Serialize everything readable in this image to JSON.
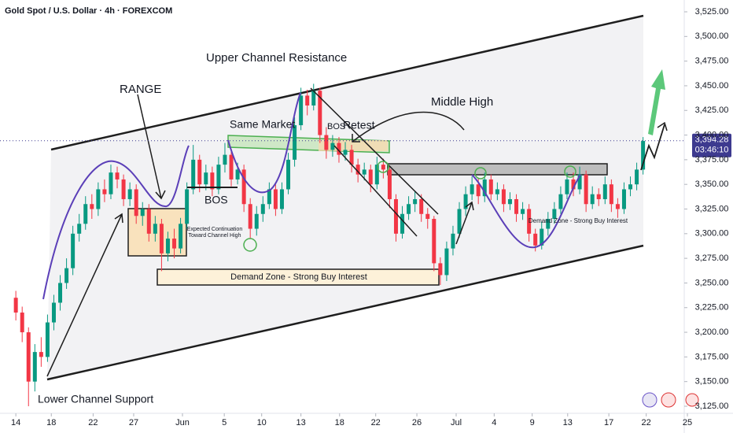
{
  "chart_data": {
    "type": "candlestick",
    "title": "Gold Spot / U.S. Dollar · 4h · FOREXCOM",
    "up_color": "#089981",
    "down_color": "#f23645",
    "xlim": [
      -2.5,
      105.5
    ],
    "ylim": [
      3125,
      3525
    ],
    "xticks": [
      {
        "value": 0,
        "label": "14"
      },
      {
        "value": 5.6,
        "label": "18"
      },
      {
        "value": 12.2,
        "label": "22"
      },
      {
        "value": 18.6,
        "label": "27"
      },
      {
        "value": 26.3,
        "label": "Jun"
      },
      {
        "value": 32.9,
        "label": "5"
      },
      {
        "value": 38.8,
        "label": "10"
      },
      {
        "value": 45,
        "label": "13"
      },
      {
        "value": 51.1,
        "label": "18"
      },
      {
        "value": 56.8,
        "label": "22"
      },
      {
        "value": 63.3,
        "label": "26"
      },
      {
        "value": 69.5,
        "label": "Jul"
      },
      {
        "value": 75.5,
        "label": "4"
      },
      {
        "value": 81.5,
        "label": "9"
      },
      {
        "value": 87.1,
        "label": "13"
      },
      {
        "value": 93.6,
        "label": "17"
      },
      {
        "value": 99.5,
        "label": "22"
      },
      {
        "value": 106,
        "label": "25"
      }
    ],
    "yticks": [
      {
        "value": 3125,
        "label": "3,125.00"
      },
      {
        "value": 3150,
        "label": "3,150.00"
      },
      {
        "value": 3175,
        "label": "3,175.00"
      },
      {
        "value": 3200,
        "label": "3,200.00"
      },
      {
        "value": 3225,
        "label": "3,225.00"
      },
      {
        "value": 3250,
        "label": "3,250.00"
      },
      {
        "value": 3275,
        "label": "3,275.00"
      },
      {
        "value": 3300,
        "label": "3,300.00"
      },
      {
        "value": 3325,
        "label": "3,325.00"
      },
      {
        "value": 3350,
        "label": "3,350.00"
      },
      {
        "value": 3375,
        "label": "3,375.00"
      },
      {
        "value": 3400,
        "label": "3,400.00"
      },
      {
        "value": 3425,
        "label": "3,425.00"
      },
      {
        "value": 3450,
        "label": "3,450.00"
      },
      {
        "value": 3475,
        "label": "3,475.00"
      },
      {
        "value": 3500,
        "label": "3,500.00"
      },
      {
        "value": 3525,
        "label": "3,525.00"
      }
    ],
    "current_price": {
      "value": 3394.28,
      "label": "3,394.28"
    },
    "countdown": "03:46:10",
    "open": [
      3235,
      3220,
      3200,
      3150,
      3180,
      3175,
      3210,
      3230,
      3250,
      3265,
      3300,
      3310,
      3330,
      3325,
      3345,
      3340,
      3362,
      3355,
      3335,
      3345,
      3318,
      3325,
      3300,
      3310,
      3280,
      3295,
      3285,
      3310,
      3345,
      3375,
      3350,
      3362,
      3345,
      3370,
      3380,
      3355,
      3365,
      3330,
      3305,
      3320,
      3330,
      3345,
      3325,
      3345,
      3375,
      3410,
      3440,
      3430,
      3445,
      3400,
      3385,
      3392,
      3380,
      3385,
      3370,
      3360,
      3365,
      3350,
      3370,
      3365,
      3335,
      3300,
      3320,
      3330,
      3335,
      3320,
      3315,
      3270,
      3258,
      3285,
      3300,
      3325,
      3340,
      3350,
      3338,
      3355,
      3340,
      3345,
      3330,
      3335,
      3320,
      3325,
      3300,
      3288,
      3305,
      3315,
      3325,
      3340,
      3355,
      3345,
      3360,
      3330,
      3340,
      3335,
      3350,
      3330,
      3325,
      3345,
      3350,
      3365
    ],
    "high": [
      3242,
      3226,
      3205,
      3188,
      3195,
      3218,
      3238,
      3258,
      3275,
      3308,
      3320,
      3338,
      3340,
      3352,
      3355,
      3370,
      3368,
      3360,
      3352,
      3350,
      3332,
      3330,
      3318,
      3315,
      3302,
      3305,
      3316,
      3352,
      3390,
      3380,
      3370,
      3368,
      3378,
      3392,
      3386,
      3372,
      3370,
      3336,
      3328,
      3338,
      3352,
      3350,
      3352,
      3382,
      3418,
      3448,
      3446,
      3452,
      3448,
      3408,
      3400,
      3398,
      3393,
      3390,
      3376,
      3372,
      3370,
      3378,
      3376,
      3368,
      3340,
      3328,
      3338,
      3343,
      3340,
      3326,
      3318,
      3276,
      3292,
      3308,
      3332,
      3348,
      3358,
      3356,
      3362,
      3360,
      3352,
      3350,
      3342,
      3340,
      3332,
      3330,
      3305,
      3312,
      3322,
      3332,
      3348,
      3362,
      3362,
      3368,
      3364,
      3348,
      3346,
      3358,
      3355,
      3336,
      3352,
      3358,
      3372,
      3398
    ],
    "low": [
      3212,
      3190,
      3125,
      3140,
      3165,
      3170,
      3202,
      3222,
      3244,
      3258,
      3292,
      3304,
      3315,
      3318,
      3332,
      3335,
      3346,
      3328,
      3328,
      3310,
      3308,
      3292,
      3292,
      3262,
      3272,
      3275,
      3280,
      3305,
      3340,
      3342,
      3344,
      3338,
      3340,
      3362,
      3348,
      3350,
      3322,
      3295,
      3298,
      3312,
      3325,
      3318,
      3320,
      3340,
      3368,
      3405,
      3420,
      3425,
      3392,
      3376,
      3378,
      3372,
      3374,
      3362,
      3352,
      3354,
      3342,
      3345,
      3356,
      3326,
      3292,
      3295,
      3314,
      3322,
      3312,
      3305,
      3262,
      3248,
      3252,
      3278,
      3296,
      3318,
      3334,
      3330,
      3332,
      3334,
      3334,
      3322,
      3324,
      3312,
      3314,
      3292,
      3282,
      3284,
      3298,
      3310,
      3320,
      3335,
      3338,
      3340,
      3322,
      3325,
      3328,
      3330,
      3322,
      3316,
      3320,
      3338,
      3344,
      3360
    ],
    "close": [
      3220,
      3200,
      3150,
      3180,
      3175,
      3210,
      3230,
      3250,
      3265,
      3300,
      3310,
      3330,
      3325,
      3345,
      3340,
      3362,
      3355,
      3335,
      3345,
      3318,
      3325,
      3300,
      3310,
      3280,
      3295,
      3285,
      3310,
      3345,
      3375,
      3350,
      3362,
      3345,
      3370,
      3380,
      3355,
      3365,
      3330,
      3305,
      3320,
      3330,
      3345,
      3325,
      3345,
      3375,
      3410,
      3440,
      3430,
      3445,
      3400,
      3385,
      3392,
      3380,
      3385,
      3370,
      3360,
      3365,
      3350,
      3370,
      3365,
      3335,
      3300,
      3320,
      3330,
      3335,
      3320,
      3315,
      3270,
      3258,
      3285,
      3300,
      3325,
      3340,
      3350,
      3338,
      3355,
      3340,
      3345,
      3330,
      3335,
      3320,
      3325,
      3300,
      3288,
      3305,
      3315,
      3325,
      3340,
      3355,
      3345,
      3360,
      3330,
      3340,
      3335,
      3350,
      3330,
      3325,
      3345,
      3350,
      3365,
      3394
    ],
    "annotations": {
      "upper_channel": "Upper Channel Resistance",
      "range": "RANGE",
      "same_market": "Same Market",
      "bos_left": "BOS",
      "bos_mid": "BOS",
      "retest": "Retest",
      "middle_high": "Middle High",
      "expected_line1": "Expected Continuation",
      "expected_line2": "Toward Channel High",
      "demand_zone": "Demand Zone - Strong Buy Interest",
      "demand_zone_right": "Demand Zone - Strong Buy Interest",
      "lower_channel": "Lower Channel Support"
    }
  }
}
